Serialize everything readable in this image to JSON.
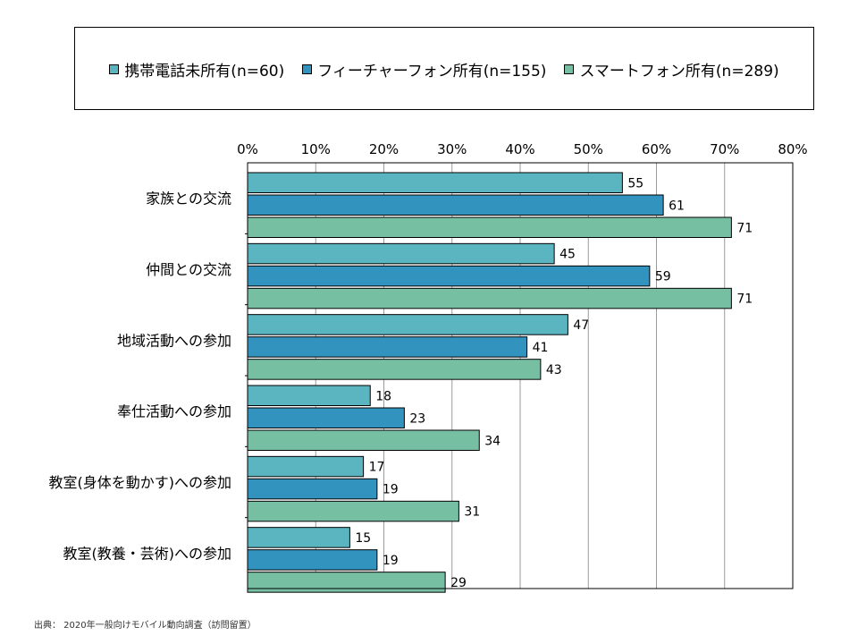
{
  "chart_data": {
    "type": "bar",
    "orientation": "horizontal",
    "categories": [
      "家族との交流",
      "仲間との交流",
      "地域活動への参加",
      "奉仕活動への参加",
      "教室(身体を動かす)への参加",
      "教室(教養・芸術)への参加"
    ],
    "series": [
      {
        "name": "携帯電話未所有(n=60)",
        "color": "#5BB5C0",
        "values": [
          55,
          45,
          47,
          18,
          17,
          15
        ]
      },
      {
        "name": "フィーチャーフォン所有(n=155)",
        "color": "#3193BE",
        "values": [
          61,
          59,
          41,
          23,
          19,
          19
        ]
      },
      {
        "name": "スマートフォン所有(n=289)",
        "color": "#77BFA3",
        "values": [
          71,
          71,
          43,
          34,
          31,
          29
        ]
      }
    ],
    "xlim": [
      0,
      80
    ],
    "xticks": [
      "0%",
      "10%",
      "20%",
      "30%",
      "40%",
      "50%",
      "60%",
      "70%",
      "80%"
    ],
    "grid": true,
    "legend_position": "top"
  },
  "source_note": "出典： 2020年一般向けモバイル動向調査（訪問留置）"
}
